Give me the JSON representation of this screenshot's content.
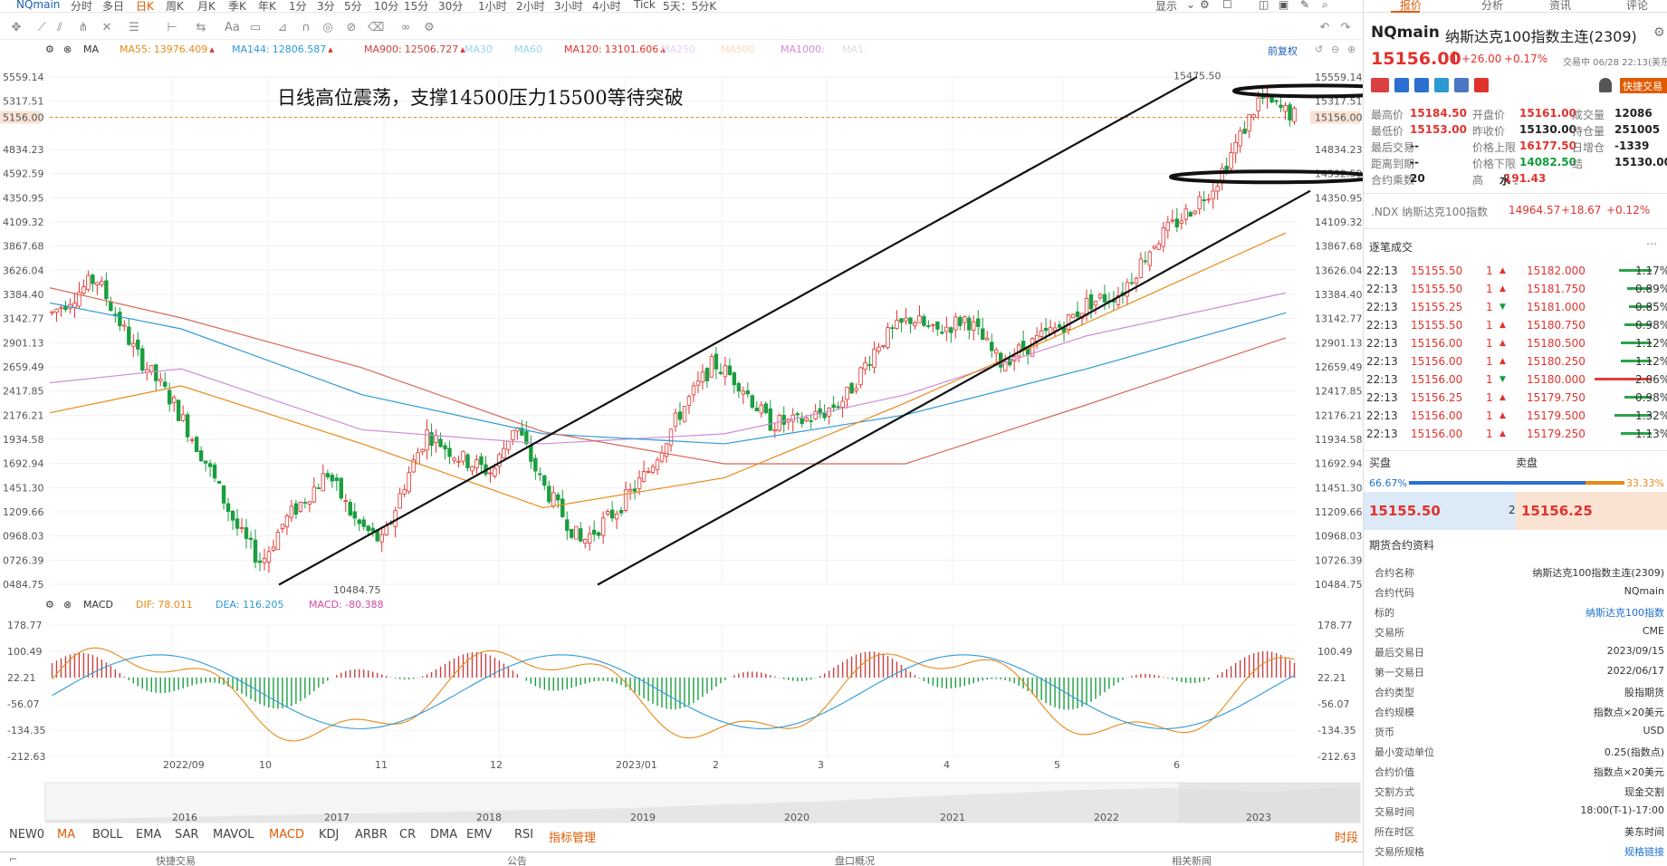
{
  "topbar": {
    "symbol": "NQmain",
    "periods": [
      "分时",
      "多日",
      "日K",
      "周K",
      "月K",
      "季K",
      "年K",
      "1分",
      "3分",
      "5分",
      "10分",
      "15分",
      "30分",
      "1小时",
      "2小时",
      "3小时",
      "4小时",
      "Tick",
      "5天：5分K"
    ],
    "active_period": "日K",
    "display_label": "显示"
  },
  "ma_legend": {
    "label": "MA",
    "items": [
      {
        "name": "MA55:",
        "value": "13976.409",
        "color": "#e88a18"
      },
      {
        "name": "MA144:",
        "value": "12806.587",
        "color": "#2d9ad8"
      },
      {
        "name": "MA900:",
        "value": "12506.727",
        "color": "#c94040"
      },
      {
        "name": "MA30",
        "value": "",
        "color": "#9ad4f0"
      },
      {
        "name": "MA60",
        "value": "",
        "color": "#9ad4f0"
      },
      {
        "name": "MA120:",
        "value": "13101.606",
        "color": "#e1322d"
      },
      {
        "name": "MA250",
        "value": "",
        "color": "#ead1f5"
      },
      {
        "name": "MA500",
        "value": "",
        "color": "#f5deb6"
      },
      {
        "name": "MA1000:",
        "value": "",
        "color": "#d08ad8"
      },
      {
        "name": "MA1:",
        "value": "",
        "color": "#ddd"
      }
    ],
    "fq_label": "前复权"
  },
  "chart": {
    "annotation": "日线高位震荡，支撑14500压力15500等待突破",
    "price_tag": "5156.00",
    "price_tag_right": "15156.00",
    "max_label": "15475.50",
    "min_label": "10484.75",
    "y_ticks_left": [
      "5559.14",
      "5317.51",
      "5156.00",
      "4834.23",
      "4592.59",
      "4350.95",
      "4109.32",
      "3867.68",
      "3626.04",
      "3384.40",
      "3142.77",
      "2901.13",
      "2659.49",
      "2417.85",
      "2176.21",
      "1934.58",
      "1692.94",
      "1451.30",
      "1209.66",
      "0968.03",
      "0726.39",
      "0484.75"
    ],
    "y_ticks_right": [
      "15559.14",
      "15317.51",
      "15156.00",
      "14834.23",
      "14592.59",
      "14350.95",
      "14109.32",
      "13867.68",
      "13626.04",
      "13384.40",
      "13142.77",
      "12901.13",
      "12659.49",
      "12417.85",
      "12176.21",
      "11934.58",
      "11692.94",
      "11451.30",
      "11209.66",
      "10968.03",
      "10726.39",
      "10484.75"
    ],
    "x_ticks": [
      "2022/09",
      "10",
      "11",
      "12",
      "2023/01",
      "2",
      "3",
      "4",
      "5",
      "6"
    ]
  },
  "macd": {
    "label": "MACD",
    "dif": "DIF: 78.011",
    "dea": "DEA: 116.205",
    "macd": "MACD: -80.388",
    "y_ticks": [
      "178.77",
      "100.49",
      "22.21",
      "-56.07",
      "-134.35",
      "-212.63"
    ]
  },
  "overview": {
    "years": [
      "2016",
      "2017",
      "2018",
      "2019",
      "2020",
      "2021",
      "2022",
      "2023"
    ]
  },
  "indicator_tabs": [
    "NEW0",
    "MA",
    "BOLL",
    "EMA",
    "SAR",
    "MAVOL",
    "MACD",
    "KDJ",
    "ARBR",
    "CR",
    "DMA",
    "EMV",
    "RSI",
    "指标管理"
  ],
  "indicator_active": [
    "MA",
    "MACD"
  ],
  "time_tab": "时段",
  "statusbar": [
    "快捷交易",
    "公告",
    "盘口概况",
    "相关新闻"
  ],
  "right": {
    "tabs": [
      "报价",
      "分析",
      "资讯",
      "评论"
    ],
    "active_tab": "报价",
    "symbol": "NQmain",
    "name": "纳斯达克100指数主连(2309)",
    "price": "15156.00",
    "change": "+26.00",
    "change_pct": "+0.17%",
    "trade_time": "交易中 06/28 22:13(美东)",
    "quick_trade": "快捷交易",
    "stats": [
      {
        "k": "最高价",
        "v": "15184.50",
        "c": "red"
      },
      {
        "k": "开盘价",
        "v": "15161.00",
        "c": "red"
      },
      {
        "k": "成交量",
        "v": "12086",
        "c": "dark"
      },
      {
        "k": "最低价",
        "v": "15153.00",
        "c": "red"
      },
      {
        "k": "昨收价",
        "v": "15130.00",
        "c": "dark"
      },
      {
        "k": "持仓量",
        "v": "251005",
        "c": "dark"
      },
      {
        "k": "最后交易",
        "v": "--",
        "c": "dark"
      },
      {
        "k": "价格上限",
        "v": "16177.50",
        "c": "red"
      },
      {
        "k": "日增仓",
        "v": "-1339",
        "c": "dark"
      },
      {
        "k": "距离到期",
        "v": "--",
        "c": "dark"
      },
      {
        "k": "价格下限",
        "v": "14082.50",
        "c": "green"
      },
      {
        "k": "结",
        "v": "15130.00",
        "c": "dark"
      },
      {
        "k": "合约乘数",
        "v": "20",
        "c": "dark"
      },
      {
        "k": "高",
        "v": "水",
        "c": "dark"
      },
      {
        "k": "",
        "v": "191.43",
        "c": "red"
      }
    ],
    "ndx": {
      "name": ".NDX 纳斯达克100指数",
      "price": "14964.57",
      "chg": "+18.67",
      "pct": "+0.12%"
    },
    "ticks_title": "逐笔成交",
    "ticks": [
      {
        "t": "22:13",
        "p": "15155.50",
        "q": "1",
        "dir": "up"
      },
      {
        "t": "22:13",
        "p": "15155.50",
        "q": "1",
        "dir": "up"
      },
      {
        "t": "22:13",
        "p": "15155.25",
        "q": "1",
        "dir": "down"
      },
      {
        "t": "22:13",
        "p": "15155.50",
        "q": "1",
        "dir": "up"
      },
      {
        "t": "22:13",
        "p": "15156.00",
        "q": "1",
        "dir": "up"
      },
      {
        "t": "22:13",
        "p": "15156.00",
        "q": "1",
        "dir": "up"
      },
      {
        "t": "22:13",
        "p": "15156.00",
        "q": "1",
        "dir": "down"
      },
      {
        "t": "22:13",
        "p": "15156.25",
        "q": "1",
        "dir": "up"
      },
      {
        "t": "22:13",
        "p": "15156.00",
        "q": "1",
        "dir": "up"
      },
      {
        "t": "22:13",
        "p": "15156.00",
        "q": "1",
        "dir": "up"
      }
    ],
    "depth": [
      {
        "p": "15182.000",
        "pct": "1.17%",
        "w": 0.4
      },
      {
        "p": "15181.750",
        "pct": "0.89%",
        "w": 0.3
      },
      {
        "p": "15181.000",
        "pct": "0.85%",
        "w": 0.28
      },
      {
        "p": "15180.750",
        "pct": "0.98%",
        "w": 0.33
      },
      {
        "p": "15180.500",
        "pct": "1.12%",
        "w": 0.38
      },
      {
        "p": "15180.250",
        "pct": "1.12%",
        "w": 0.38
      },
      {
        "p": "15180.000",
        "pct": "2.06%",
        "w": 0.7
      },
      {
        "p": "15179.750",
        "pct": "0.98%",
        "w": 0.33
      },
      {
        "p": "15179.500",
        "pct": "1.32%",
        "w": 0.45
      },
      {
        "p": "15179.250",
        "pct": "1.13%",
        "w": 0.38
      }
    ],
    "buy_label": "买盘",
    "sell_label": "卖盘",
    "buy_pct": "66.67%",
    "sell_pct": "33.33%",
    "bid": "15155.50",
    "bid_qty": "2",
    "ask": "15156.25",
    "fut_title": "期货合约资料",
    "fut": [
      {
        "k": "合约名称",
        "v": "纳斯达克100指数主连(2309)"
      },
      {
        "k": "合约代码",
        "v": "NQmain"
      },
      {
        "k": "标的",
        "v": "纳斯达克100指数"
      },
      {
        "k": "交易所",
        "v": "CME"
      },
      {
        "k": "最后交易日",
        "v": "2023/09/15"
      },
      {
        "k": "第一交易日",
        "v": "2022/06/17"
      },
      {
        "k": "合约类型",
        "v": "股指期货"
      },
      {
        "k": "合约规模",
        "v": "指数点×20美元"
      },
      {
        "k": "货币",
        "v": "USD"
      },
      {
        "k": "最小变动单位",
        "v": "0.25(指数点)"
      },
      {
        "k": "合约价值",
        "v": "指数点×20美元"
      },
      {
        "k": "交割方式",
        "v": "现金交割"
      },
      {
        "k": "交易时间",
        "v": "18:00(T-1)-17:00"
      },
      {
        "k": "所在时区",
        "v": "美东时间"
      },
      {
        "k": "交易所规格",
        "v": "规格链接"
      }
    ]
  }
}
